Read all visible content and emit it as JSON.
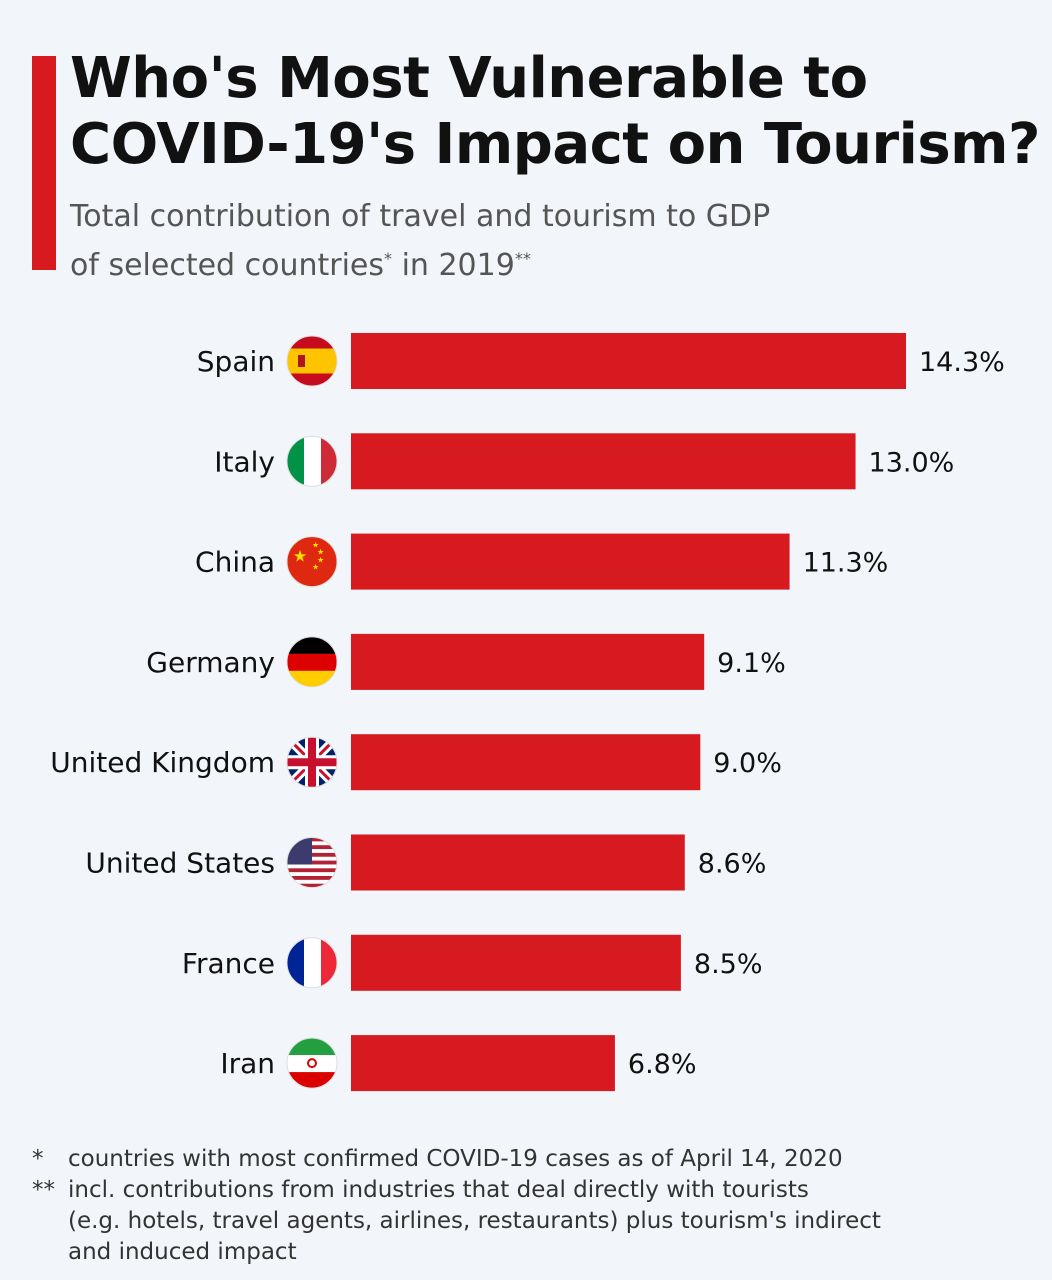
{
  "chart_data": {
    "type": "bar",
    "orientation": "horizontal",
    "title": "Who's Most Vulnerable to COVID-19's Impact on Tourism?",
    "subtitle_line1": "Total contribution of travel and tourism to GDP",
    "subtitle_line2_a": "of selected countries",
    "subtitle_mark1": "*",
    "subtitle_line2_b": " in 2019",
    "subtitle_mark2": "**",
    "categories": [
      "Spain",
      "Italy",
      "China",
      "Germany",
      "United Kingdom",
      "United States",
      "France",
      "Iran"
    ],
    "values": [
      14.3,
      13.0,
      11.3,
      9.1,
      9.0,
      8.6,
      8.5,
      6.8
    ],
    "value_labels": [
      "14.3%",
      "13.0%",
      "11.3%",
      "9.1%",
      "9.0%",
      "8.6%",
      "8.5%",
      "6.8%"
    ],
    "flag_icons": [
      "spain-flag",
      "italy-flag",
      "china-flag",
      "germany-flag",
      "uk-flag",
      "us-flag",
      "france-flag",
      "iran-flag"
    ],
    "unit": "%",
    "xlim": [
      0,
      14.3
    ],
    "grid": false,
    "bar_color": "#d71920",
    "accent_color": "#d71920"
  },
  "footer": {
    "note1_mark": "*",
    "note1": "countries with most confirmed COVID-19 cases as of April 14, 2020",
    "note2_mark": "**",
    "note2_line1": "incl. contributions from industries that deal directly with tourists",
    "note2_line2": "(e.g. hotels, travel agents, airlines, restaurants) plus tourism's indirect",
    "note2_line3": "and induced impact"
  }
}
